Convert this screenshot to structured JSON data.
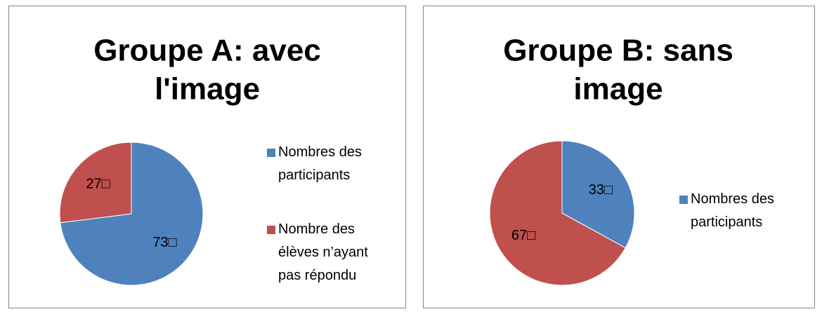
{
  "chart_data": [
    {
      "type": "pie",
      "title": "Groupe A: avec l'image",
      "categories": [
        "Nombres des participants",
        "Nombre des élèves n’ayant pas répondu"
      ],
      "values": [
        73,
        27
      ],
      "value_labels": [
        "73□",
        "27□"
      ],
      "colors": [
        "#4f81bd",
        "#c0504d"
      ]
    },
    {
      "type": "pie",
      "title": "Groupe B: sans image",
      "categories": [
        "Nombres des participants",
        null
      ],
      "values": [
        33,
        67
      ],
      "value_labels": [
        "33□",
        "67□"
      ],
      "colors": [
        "#4f81bd",
        "#c0504d"
      ]
    }
  ]
}
